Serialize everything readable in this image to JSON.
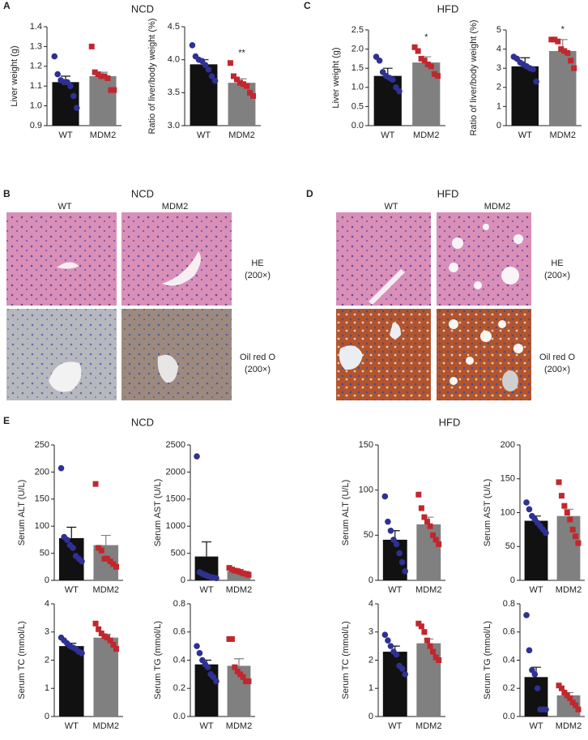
{
  "panel_labels": [
    "A",
    "B",
    "C",
    "D",
    "E"
  ],
  "headings": [
    "NCD",
    "HFD",
    "NCD",
    "HFD",
    "NCD",
    "HFD"
  ],
  "histology": [
    {
      "columns": [
        "WT",
        "MDM2"
      ],
      "rows": [
        {
          "stain": "HE",
          "magnification": "(200×)"
        },
        {
          "stain": "Oil red O",
          "magnification": "(200×)"
        }
      ]
    },
    {
      "columns": [
        "WT",
        "MDM2"
      ],
      "rows": [
        {
          "stain": "HE",
          "magnification": "(200×)"
        },
        {
          "stain": "Oil red O",
          "magnification": "(200×)"
        }
      ]
    }
  ],
  "chart_data": [
    {
      "type": "bar",
      "ylabel": "Liver weight (g)",
      "categories": [
        "WT",
        "MDM2"
      ],
      "values": [
        1.12,
        1.15
      ],
      "errors": [
        0.03,
        0.02
      ],
      "colors": [
        "#111111",
        "#808080"
      ],
      "point_colors": [
        "#2e3192",
        "#c1272d"
      ],
      "markers": [
        "circle",
        "square"
      ],
      "points": [
        [
          1.25,
          1.16,
          1.13,
          1.12,
          1.12,
          1.1,
          1.05,
          0.99
        ],
        [
          1.3,
          1.17,
          1.16,
          1.15,
          1.15,
          1.14,
          1.08,
          1.08
        ]
      ],
      "ylim": [
        0.9,
        1.4
      ],
      "yticks": [
        0.9,
        {
          "value": 1,
          "label": "1.0"
        },
        1.1,
        1.2,
        1.3,
        1.4
      ],
      "annotations": []
    },
    {
      "type": "bar",
      "ylabel": "Ratio of liver/body weight (%)",
      "categories": [
        "WT",
        "MDM2"
      ],
      "values": [
        3.93,
        3.65
      ],
      "errors": [
        0.07,
        0.06
      ],
      "colors": [
        "#111111",
        "#808080"
      ],
      "point_colors": [
        "#2e3192",
        "#c1272d"
      ],
      "markers": [
        "circle",
        "square"
      ],
      "points": [
        [
          4.22,
          4.05,
          4.0,
          3.98,
          3.92,
          3.85,
          3.75,
          3.68
        ],
        [
          3.95,
          3.75,
          3.7,
          3.65,
          3.63,
          3.6,
          3.5,
          3.45
        ]
      ],
      "ylim": [
        3,
        4.5
      ],
      "yticks": [
        {
          "value": 3,
          "label": "3.0"
        },
        3.5,
        {
          "value": 4,
          "label": "4.0"
        },
        4.5
      ],
      "annotations": [
        {
          "category": "MDM2",
          "text": "**"
        }
      ]
    },
    {
      "type": "bar",
      "ylabel": "Liver weight (g)",
      "categories": [
        "WT",
        "MDM2"
      ],
      "values": [
        1.3,
        1.65
      ],
      "errors": [
        0.2,
        0.15
      ],
      "colors": [
        "#111111",
        "#808080"
      ],
      "point_colors": [
        "#2e3192",
        "#c1272d"
      ],
      "markers": [
        "circle",
        "square"
      ],
      "points": [
        [
          1.8,
          1.7,
          1.4,
          1.3,
          1.25,
          1.2,
          1.0,
          0.9
        ],
        [
          2.05,
          1.95,
          1.75,
          1.7,
          1.6,
          1.55,
          1.35,
          1.3
        ]
      ],
      "ylim": [
        0,
        2.5
      ],
      "yticks": [
        {
          "value": 0,
          "label": "0.0"
        },
        0.5,
        {
          "value": 1,
          "label": "1.0"
        },
        1.5,
        {
          "value": 2,
          "label": "2.0"
        },
        2.5
      ],
      "annotations": [
        {
          "category": "MDM2",
          "text": "*"
        }
      ]
    },
    {
      "type": "bar",
      "ylabel": "Ratio of liver/body weight (%)",
      "categories": [
        "WT",
        "MDM2"
      ],
      "values": [
        3.1,
        3.9
      ],
      "errors": [
        0.45,
        0.6
      ],
      "colors": [
        "#111111",
        "#808080"
      ],
      "point_colors": [
        "#2e3192",
        "#c1272d"
      ],
      "markers": [
        "circle",
        "square"
      ],
      "points": [
        [
          3.6,
          3.5,
          3.3,
          3.2,
          3.1,
          3.0,
          2.95,
          2.3
        ],
        [
          4.5,
          4.5,
          4.4,
          4.0,
          3.9,
          3.8,
          3.4,
          3.0
        ]
      ],
      "ylim": [
        0,
        5
      ],
      "yticks": [
        0,
        1,
        2,
        3,
        4,
        5
      ],
      "annotations": [
        {
          "category": "MDM2",
          "text": "*"
        }
      ]
    },
    {
      "type": "bar",
      "ylabel": "Serum ALT (U/L)",
      "categories": [
        "WT",
        "MDM2"
      ],
      "values": [
        78,
        65
      ],
      "errors": [
        20,
        18
      ],
      "colors": [
        "#111111",
        "#808080"
      ],
      "point_colors": [
        "#2e3192",
        "#c1272d"
      ],
      "markers": [
        "circle",
        "square"
      ],
      "points": [
        [
          207,
          80,
          75,
          65,
          60,
          45,
          40,
          35
        ],
        [
          178,
          60,
          55,
          40,
          40,
          35,
          30,
          25
        ]
      ],
      "ylim": [
        0,
        250
      ],
      "yticks": [
        0,
        50,
        100,
        150,
        200,
        250
      ],
      "annotations": []
    },
    {
      "type": "bar",
      "ylabel": "Serum AST (U/L)",
      "categories": [
        "WT",
        "MDM2"
      ],
      "values": [
        440,
        170
      ],
      "errors": [
        270,
        30
      ],
      "colors": [
        "#111111",
        "#808080"
      ],
      "point_colors": [
        "#2e3192",
        "#c1272d"
      ],
      "markers": [
        "circle",
        "square"
      ],
      "points": [
        [
          2290,
          150,
          120,
          100,
          80,
          60,
          50,
          40
        ],
        [
          230,
          200,
          180,
          170,
          150,
          130,
          120,
          100
        ]
      ],
      "ylim": [
        0,
        2500
      ],
      "yticks": [
        0,
        500,
        1000,
        1500,
        2000,
        2500
      ],
      "annotations": []
    },
    {
      "type": "bar",
      "ylabel": "Serum ALT (U/L)",
      "categories": [
        "WT",
        "MDM2"
      ],
      "values": [
        45,
        62
      ],
      "errors": [
        10,
        8
      ],
      "colors": [
        "#111111",
        "#808080"
      ],
      "point_colors": [
        "#2e3192",
        "#c1272d"
      ],
      "markers": [
        "circle",
        "square"
      ],
      "points": [
        [
          93,
          65,
          55,
          45,
          40,
          30,
          20,
          10
        ],
        [
          95,
          80,
          70,
          65,
          60,
          50,
          45,
          40
        ]
      ],
      "ylim": [
        0,
        150
      ],
      "yticks": [
        0,
        50,
        100,
        150
      ],
      "annotations": []
    },
    {
      "type": "bar",
      "ylabel": "Serum AST (U/L)",
      "categories": [
        "WT",
        "MDM2"
      ],
      "values": [
        88,
        95
      ],
      "errors": [
        7,
        10
      ],
      "colors": [
        "#111111",
        "#808080"
      ],
      "point_colors": [
        "#2e3192",
        "#c1272d"
      ],
      "markers": [
        "circle",
        "square"
      ],
      "points": [
        [
          115,
          105,
          95,
          90,
          85,
          80,
          75,
          70
        ],
        [
          145,
          125,
          110,
          100,
          90,
          75,
          65,
          55
        ]
      ],
      "ylim": [
        0,
        200
      ],
      "yticks": [
        0,
        50,
        100,
        150,
        200
      ],
      "annotations": []
    },
    {
      "type": "bar",
      "ylabel": "Serum TC (mmol/L)",
      "categories": [
        "WT",
        "MDM2"
      ],
      "values": [
        2.5,
        2.8
      ],
      "errors": [
        0.1,
        0.12
      ],
      "colors": [
        "#111111",
        "#808080"
      ],
      "point_colors": [
        "#2e3192",
        "#c1272d"
      ],
      "markers": [
        "circle",
        "square"
      ],
      "points": [
        [
          2.8,
          2.7,
          2.6,
          2.5,
          2.45,
          2.4,
          2.3,
          2.25
        ],
        [
          3.3,
          3.1,
          2.95,
          2.85,
          2.8,
          2.7,
          2.55,
          2.4
        ]
      ],
      "ylim": [
        0,
        4
      ],
      "yticks": [
        0,
        1,
        2,
        3,
        4
      ],
      "annotations": []
    },
    {
      "type": "bar",
      "ylabel": "Serum TG (mmol/L)",
      "categories": [
        "WT",
        "MDM2"
      ],
      "values": [
        0.37,
        0.36
      ],
      "errors": [
        0.03,
        0.05
      ],
      "colors": [
        "#111111",
        "#808080"
      ],
      "point_colors": [
        "#2e3192",
        "#c1272d"
      ],
      "markers": [
        "circle",
        "square"
      ],
      "points": [
        [
          0.5,
          0.45,
          0.4,
          0.37,
          0.35,
          0.3,
          0.28,
          0.25
        ],
        [
          0.55,
          0.55,
          0.35,
          0.32,
          0.3,
          0.28,
          0.25,
          0.25
        ]
      ],
      "ylim": [
        0,
        0.8
      ],
      "yticks": [
        {
          "value": 0,
          "label": "0.0"
        },
        0.2,
        0.4,
        0.6,
        0.8
      ],
      "annotations": []
    },
    {
      "type": "bar",
      "ylabel": "Serum TC (mmol/L)",
      "categories": [
        "WT",
        "MDM2"
      ],
      "values": [
        2.3,
        2.6
      ],
      "errors": [
        0.2,
        0.15
      ],
      "colors": [
        "#111111",
        "#808080"
      ],
      "point_colors": [
        "#2e3192",
        "#c1272d"
      ],
      "markers": [
        "circle",
        "square"
      ],
      "points": [
        [
          2.9,
          2.7,
          2.5,
          2.3,
          2.2,
          1.8,
          1.7,
          1.5
        ],
        [
          3.3,
          3.2,
          3.0,
          2.7,
          2.5,
          2.3,
          2.1,
          2.0
        ]
      ],
      "ylim": [
        0,
        4
      ],
      "yticks": [
        0,
        1,
        2,
        3,
        4
      ],
      "annotations": []
    },
    {
      "type": "bar",
      "ylabel": "Serum TG (mmol/L)",
      "categories": [
        "WT",
        "MDM2"
      ],
      "values": [
        0.28,
        0.15
      ],
      "errors": [
        0.07,
        0.02
      ],
      "colors": [
        "#111111",
        "#808080"
      ],
      "point_colors": [
        "#2e3192",
        "#c1272d"
      ],
      "markers": [
        "circle",
        "square"
      ],
      "points": [
        [
          0.72,
          0.47,
          0.33,
          0.3,
          0.2,
          0.05,
          0.05,
          0.05
        ],
        [
          0.22,
          0.2,
          0.17,
          0.15,
          0.13,
          0.1,
          0.08,
          0.05
        ]
      ],
      "ylim": [
        0,
        0.8
      ],
      "yticks": [
        {
          "value": 0,
          "label": "0.0"
        },
        0.2,
        0.4,
        0.6,
        0.8
      ],
      "annotations": []
    }
  ]
}
